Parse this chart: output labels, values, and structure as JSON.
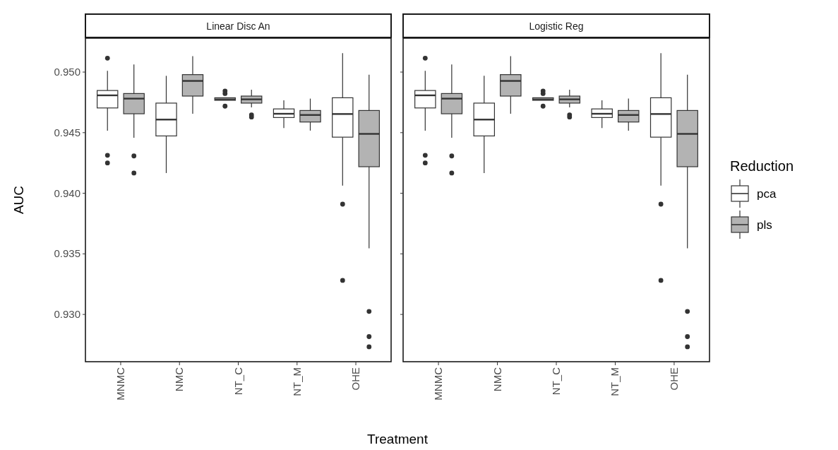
{
  "chart_data": [
    {
      "type": "box",
      "title": "Linear Disc An",
      "xlabel": "Treatment",
      "ylabel": "AUC",
      "categories": [
        "MNMC",
        "NMC",
        "NT_C",
        "NT_M",
        "OHE"
      ],
      "ylim": [
        0.9261,
        0.9528
      ],
      "yticks": [
        {
          "value": 0.93,
          "label": "0.930"
        },
        {
          "value": 0.935,
          "label": "0.935"
        },
        {
          "value": 0.94,
          "label": "0.940"
        },
        {
          "value": 0.945,
          "label": "0.945"
        },
        {
          "value": 0.95,
          "label": "0.950"
        }
      ],
      "legend": "right",
      "legend_title": "Reduction",
      "series": [
        {
          "name": "pca",
          "color": "#ffffff",
          "boxes": [
            {
              "low": 0.94517,
              "q1": 0.94704,
              "median": 0.94808,
              "q3": 0.94848,
              "high": 0.9501,
              "outliers": [
                0.95115,
                0.94313,
                0.9425
              ]
            },
            {
              "low": 0.94167,
              "q1": 0.94473,
              "median": 0.94608,
              "q3": 0.94744,
              "high": 0.94969
            },
            {
              "low": 0.94767,
              "q1": 0.94767,
              "median": 0.94775,
              "q3": 0.94788,
              "high": 0.9479,
              "outliers": [
                0.94844,
                0.94823,
                0.94719
              ]
            },
            {
              "low": 0.94538,
              "q1": 0.94625,
              "median": 0.94656,
              "q3": 0.94696,
              "high": 0.94767
            },
            {
              "low": 0.94063,
              "q1": 0.94463,
              "median": 0.94654,
              "q3": 0.94788,
              "high": 0.95156,
              "outliers": [
                0.9391,
                0.93281
              ]
            }
          ]
        },
        {
          "name": "pls",
          "color": "#b3b3b3",
          "boxes": [
            {
              "low": 0.94458,
              "q1": 0.94656,
              "median": 0.94781,
              "q3": 0.94823,
              "high": 0.95063,
              "outliers": [
                0.94308,
                0.94167
              ]
            },
            {
              "low": 0.94656,
              "q1": 0.94802,
              "median": 0.94927,
              "q3": 0.94979,
              "high": 0.95131
            },
            {
              "low": 0.94708,
              "q1": 0.94744,
              "median": 0.94775,
              "q3": 0.94802,
              "high": 0.94854,
              "outliers": [
                0.94646,
                0.94629
              ]
            },
            {
              "low": 0.94517,
              "q1": 0.94588,
              "median": 0.94646,
              "q3": 0.94683,
              "high": 0.94781
            },
            {
              "low": 0.93546,
              "q1": 0.94219,
              "median": 0.9449,
              "q3": 0.94683,
              "high": 0.94979,
              "outliers": [
                0.93025,
                0.92817,
                0.92733
              ]
            }
          ]
        }
      ]
    },
    {
      "type": "box",
      "title": "Logistic Reg",
      "categories": [
        "MNMC",
        "NMC",
        "NT_C",
        "NT_M",
        "OHE"
      ],
      "ylim": [
        0.9261,
        0.9528
      ],
      "yticks": [
        0.93,
        0.935,
        0.94,
        0.945,
        0.95
      ],
      "tick_labels": "x",
      "series": [
        {
          "color": "#ffffff",
          "boxes": [
            {
              "low": 0.94517,
              "q1": 0.94704,
              "median": 0.94808,
              "q3": 0.94848,
              "high": 0.9501,
              "outliers": [
                0.95115,
                0.94313,
                0.9425
              ]
            },
            {
              "low": 0.94167,
              "q1": 0.94473,
              "median": 0.94608,
              "q3": 0.94744,
              "high": 0.94969
            },
            {
              "low": 0.94767,
              "q1": 0.94767,
              "median": 0.94775,
              "q3": 0.94788,
              "high": 0.9479,
              "outliers": [
                0.94844,
                0.94823,
                0.94719
              ]
            },
            {
              "low": 0.94538,
              "q1": 0.94625,
              "median": 0.94656,
              "q3": 0.94696,
              "high": 0.94767
            },
            {
              "low": 0.94063,
              "q1": 0.94463,
              "median": 0.94654,
              "q3": 0.94788,
              "high": 0.95156,
              "outliers": [
                0.9391,
                0.93281
              ]
            }
          ]
        },
        {
          "color": "#b3b3b3",
          "boxes": [
            {
              "low": 0.94458,
              "q1": 0.94656,
              "median": 0.94781,
              "q3": 0.94823,
              "high": 0.95063,
              "outliers": [
                0.94308,
                0.94167
              ]
            },
            {
              "low": 0.94656,
              "q1": 0.94802,
              "median": 0.94927,
              "q3": 0.94979,
              "high": 0.95131
            },
            {
              "low": 0.94708,
              "q1": 0.94744,
              "median": 0.94775,
              "q3": 0.94802,
              "high": 0.94854,
              "outliers": [
                0.94646,
                0.94629
              ]
            },
            {
              "low": 0.94517,
              "q1": 0.94588,
              "median": 0.94646,
              "q3": 0.94683,
              "high": 0.94781
            },
            {
              "low": 0.93546,
              "q1": 0.94219,
              "median": 0.9449,
              "q3": 0.94683,
              "high": 0.94979,
              "outliers": [
                0.93025,
                0.92817,
                0.92733
              ]
            }
          ]
        }
      ]
    }
  ]
}
